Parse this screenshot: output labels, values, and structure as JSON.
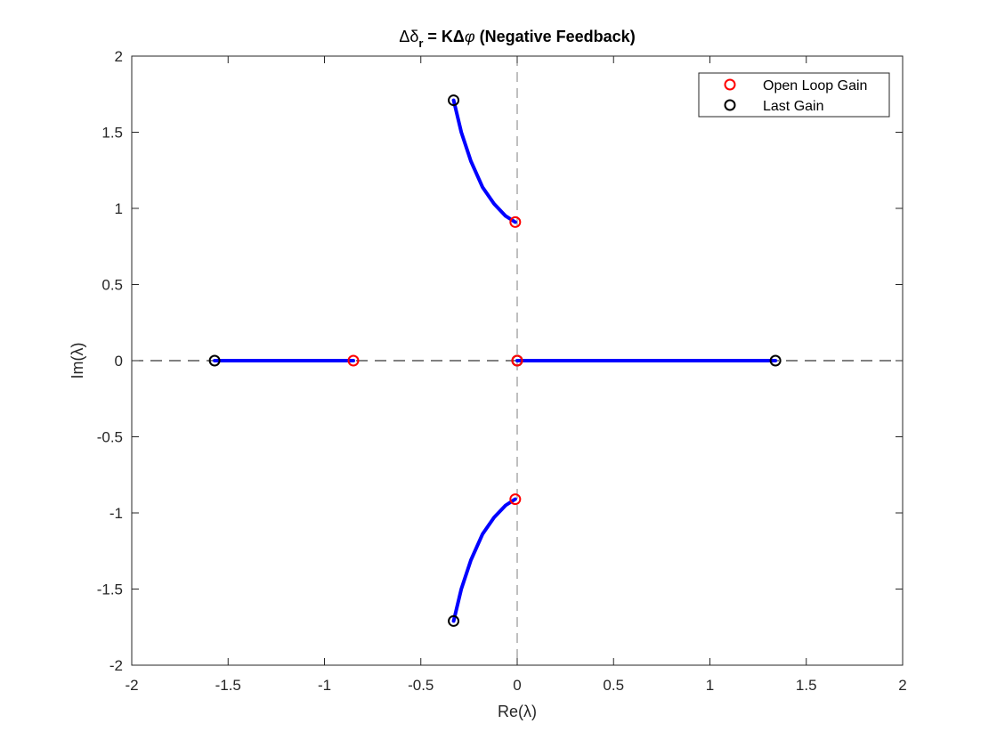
{
  "chart_data": {
    "type": "scatter",
    "title": "Δδr = KΔφ (Negative Feedback)",
    "title_parts": {
      "a": "Δδ",
      "sub": "r",
      "b": " = KΔ",
      "phi": "φ",
      "c": " (Negative Feedback)"
    },
    "xlabel": "Re(λ)",
    "ylabel": "Im(λ)",
    "xlim": [
      -2,
      2
    ],
    "ylim": [
      -2,
      2
    ],
    "xticks": [
      -2,
      -1.5,
      -1,
      -0.5,
      0,
      0.5,
      1,
      1.5,
      2
    ],
    "yticks": [
      -2,
      -1.5,
      -1,
      -0.5,
      0,
      0.5,
      1,
      1.5,
      2
    ],
    "xtick_labels": [
      "-2",
      "-1.5",
      "-1",
      "-0.5",
      "0",
      "0.5",
      "1",
      "1.5",
      "2"
    ],
    "ytick_labels": [
      "-2",
      "-1.5",
      "-1",
      "-0.5",
      "0",
      "0.5",
      "1",
      "1.5",
      "2"
    ],
    "grid": false,
    "legend_position": "top-right",
    "series": [
      {
        "name": "Open Loop Gain",
        "marker": "circle",
        "color": "#ff0000",
        "points": [
          [
            -0.85,
            0
          ],
          [
            0,
            0
          ],
          [
            -0.01,
            0.91
          ],
          [
            -0.01,
            -0.91
          ]
        ]
      },
      {
        "name": "Last Gain",
        "marker": "circle",
        "color": "#000000",
        "points": [
          [
            -1.57,
            0
          ],
          [
            1.34,
            0
          ],
          [
            0.0,
            0
          ],
          [
            -0.33,
            1.71
          ],
          [
            -0.33,
            -1.71
          ]
        ]
      }
    ],
    "loci": {
      "color": "#0000ff",
      "paths": [
        [
          [
            -0.85,
            0
          ],
          [
            -1.57,
            0
          ]
        ],
        [
          [
            0.0,
            0
          ],
          [
            1.34,
            0
          ]
        ],
        [
          [
            -0.01,
            0.91
          ],
          [
            -0.06,
            0.95
          ],
          [
            -0.12,
            1.03
          ],
          [
            -0.18,
            1.14
          ],
          [
            -0.24,
            1.31
          ],
          [
            -0.29,
            1.5
          ],
          [
            -0.33,
            1.71
          ]
        ],
        [
          [
            -0.01,
            -0.91
          ],
          [
            -0.06,
            -0.95
          ],
          [
            -0.12,
            -1.03
          ],
          [
            -0.18,
            -1.14
          ],
          [
            -0.24,
            -1.31
          ],
          [
            -0.29,
            -1.5
          ],
          [
            -0.33,
            -1.71
          ]
        ]
      ]
    },
    "reference_lines": {
      "style": "dashed",
      "x0": true,
      "y0": true
    }
  }
}
